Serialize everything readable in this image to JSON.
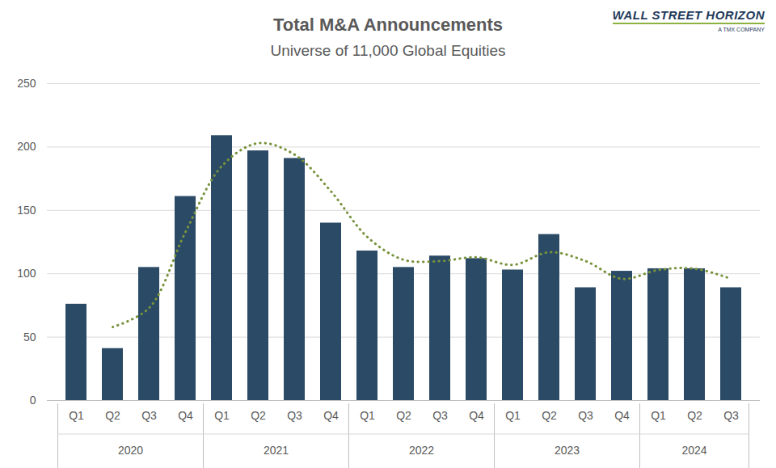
{
  "chart_data": {
    "type": "bar",
    "title": "Total M&A Announcements",
    "subtitle": "Universe of 11,000 Global Equities",
    "source": "WALL STREET HORIZON",
    "source_note": "A TMX COMPANY",
    "categories": [
      "Q1",
      "Q2",
      "Q3",
      "Q4",
      "Q1",
      "Q2",
      "Q3",
      "Q4",
      "Q1",
      "Q2",
      "Q3",
      "Q4",
      "Q1",
      "Q2",
      "Q3",
      "Q4",
      "Q1",
      "Q2",
      "Q3"
    ],
    "category_groups": [
      "2020",
      "2020",
      "2020",
      "2020",
      "2021",
      "2021",
      "2021",
      "2021",
      "2022",
      "2022",
      "2022",
      "2022",
      "2023",
      "2023",
      "2023",
      "2023",
      "2024",
      "2024",
      "2024"
    ],
    "series": [
      {
        "type": "bar",
        "color": "#2b4a66",
        "values": [
          76,
          41,
          105,
          161,
          209,
          197,
          191,
          140,
          118,
          105,
          114,
          112,
          103,
          131,
          89,
          102,
          104,
          104,
          89
        ]
      },
      {
        "type": "line",
        "color": "#77933c",
        "line_style": "dotted",
        "values": [
          null,
          58,
          73,
          133,
          185,
          203,
          194,
          165,
          129,
          111,
          110,
          113,
          107,
          117,
          110,
          96,
          103,
          104,
          96
        ]
      }
    ],
    "ylim": [
      0,
      250
    ],
    "yticks": [
      0,
      50,
      100,
      150,
      200,
      250
    ],
    "grid": true
  }
}
